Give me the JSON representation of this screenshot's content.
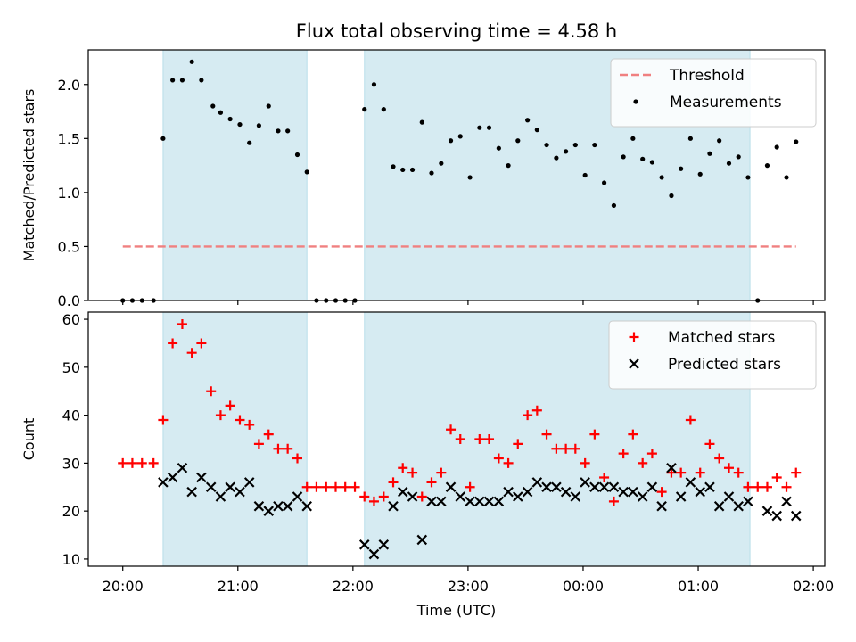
{
  "title": "Flux total observing time = 4.58 h",
  "chart_data": [
    {
      "type": "scatter",
      "ylabel": "Matched/Predicted stars",
      "ylim": [
        0,
        2.32
      ],
      "xlim": [
        -0.3,
        6.1
      ],
      "yticks": [
        0.0,
        0.5,
        1.0,
        1.5,
        2.0
      ],
      "ytick_labels": [
        "0.0",
        "0.5",
        "1.0",
        "1.5",
        "2.0"
      ],
      "shaded_spans": [
        [
          0.35,
          1.6
        ],
        [
          2.1,
          5.45
        ]
      ],
      "threshold": {
        "name": "Threshold",
        "y": 0.5,
        "x_range": [
          0.0,
          5.85
        ],
        "color": "#f08080"
      },
      "legend": {
        "position": "top-right",
        "entries": [
          "Threshold",
          "Measurements"
        ]
      },
      "series": [
        {
          "name": "Measurements",
          "marker": "dot",
          "color": "#000000",
          "points": [
            [
              0.0,
              0.0
            ],
            [
              0.083,
              0.0
            ],
            [
              0.167,
              0.0
            ],
            [
              0.267,
              0.0
            ],
            [
              0.35,
              1.5
            ],
            [
              0.433,
              2.04
            ],
            [
              0.517,
              2.04
            ],
            [
              0.6,
              2.21
            ],
            [
              0.683,
              2.04
            ],
            [
              0.783,
              1.8
            ],
            [
              0.85,
              1.74
            ],
            [
              0.933,
              1.68
            ],
            [
              1.017,
              1.63
            ],
            [
              1.1,
              1.46
            ],
            [
              1.183,
              1.62
            ],
            [
              1.267,
              1.8
            ],
            [
              1.35,
              1.57
            ],
            [
              1.433,
              1.57
            ],
            [
              1.517,
              1.35
            ],
            [
              1.6,
              1.19
            ],
            [
              1.683,
              0.0
            ],
            [
              1.767,
              0.0
            ],
            [
              1.85,
              0.0
            ],
            [
              1.933,
              0.0
            ],
            [
              2.017,
              0.0
            ],
            [
              2.1,
              1.77
            ],
            [
              2.183,
              2.0
            ],
            [
              2.267,
              1.77
            ],
            [
              2.35,
              1.24
            ],
            [
              2.433,
              1.21
            ],
            [
              2.517,
              1.21
            ],
            [
              2.6,
              1.65
            ],
            [
              2.683,
              1.18
            ],
            [
              2.767,
              1.27
            ],
            [
              2.85,
              1.48
            ],
            [
              2.933,
              1.52
            ],
            [
              3.017,
              1.14
            ],
            [
              3.1,
              1.6
            ],
            [
              3.183,
              1.6
            ],
            [
              3.267,
              1.41
            ],
            [
              3.35,
              1.25
            ],
            [
              3.433,
              1.48
            ],
            [
              3.517,
              1.67
            ],
            [
              3.6,
              1.58
            ],
            [
              3.683,
              1.44
            ],
            [
              3.767,
              1.32
            ],
            [
              3.85,
              1.38
            ],
            [
              3.933,
              1.44
            ],
            [
              4.017,
              1.16
            ],
            [
              4.1,
              1.44
            ],
            [
              4.183,
              1.09
            ],
            [
              4.267,
              0.88
            ],
            [
              4.35,
              1.33
            ],
            [
              4.433,
              1.5
            ],
            [
              4.517,
              1.31
            ],
            [
              4.6,
              1.28
            ],
            [
              4.683,
              1.14
            ],
            [
              4.767,
              0.97
            ],
            [
              4.85,
              1.22
            ],
            [
              4.933,
              1.5
            ],
            [
              5.017,
              1.17
            ],
            [
              5.1,
              1.36
            ],
            [
              5.183,
              1.48
            ],
            [
              5.267,
              1.27
            ],
            [
              5.35,
              1.33
            ],
            [
              5.433,
              1.14
            ],
            [
              5.517,
              0.0
            ],
            [
              5.6,
              1.25
            ],
            [
              5.683,
              1.42
            ],
            [
              5.767,
              1.14
            ],
            [
              5.85,
              1.47
            ]
          ]
        }
      ]
    },
    {
      "type": "scatter",
      "xlabel": "Time (UTC)",
      "ylabel": "Count",
      "ylim": [
        8.5,
        61.5
      ],
      "xlim": [
        -0.3,
        6.1
      ],
      "yticks": [
        10,
        20,
        30,
        40,
        50,
        60
      ],
      "ytick_labels": [
        "10",
        "20",
        "30",
        "40",
        "50",
        "60"
      ],
      "xticks": [
        0,
        1,
        2,
        3,
        4,
        5,
        6
      ],
      "xtick_labels": [
        "20:00",
        "21:00",
        "22:00",
        "23:00",
        "00:00",
        "01:00",
        "02:00"
      ],
      "shaded_spans": [
        [
          0.35,
          1.6
        ],
        [
          2.1,
          5.45
        ]
      ],
      "legend": {
        "position": "top-right",
        "entries": [
          "Matched stars",
          "Predicted stars"
        ]
      },
      "series": [
        {
          "name": "Matched stars",
          "marker": "plus",
          "color": "#ff0000",
          "points": [
            [
              0.0,
              30
            ],
            [
              0.083,
              30
            ],
            [
              0.167,
              30
            ],
            [
              0.267,
              30
            ],
            [
              0.35,
              39
            ],
            [
              0.433,
              55
            ],
            [
              0.517,
              59
            ],
            [
              0.6,
              53
            ],
            [
              0.683,
              55
            ],
            [
              0.767,
              45
            ],
            [
              0.85,
              40
            ],
            [
              0.933,
              42
            ],
            [
              1.017,
              39
            ],
            [
              1.1,
              38
            ],
            [
              1.183,
              34
            ],
            [
              1.267,
              36
            ],
            [
              1.35,
              33
            ],
            [
              1.433,
              33
            ],
            [
              1.517,
              31
            ],
            [
              1.6,
              25
            ],
            [
              1.683,
              25
            ],
            [
              1.767,
              25
            ],
            [
              1.85,
              25
            ],
            [
              1.933,
              25
            ],
            [
              2.017,
              25
            ],
            [
              2.1,
              23
            ],
            [
              2.183,
              22
            ],
            [
              2.267,
              23
            ],
            [
              2.35,
              26
            ],
            [
              2.433,
              29
            ],
            [
              2.517,
              28
            ],
            [
              2.6,
              23
            ],
            [
              2.683,
              26
            ],
            [
              2.767,
              28
            ],
            [
              2.85,
              37
            ],
            [
              2.933,
              35
            ],
            [
              3.017,
              25
            ],
            [
              3.1,
              35
            ],
            [
              3.183,
              35
            ],
            [
              3.267,
              31
            ],
            [
              3.35,
              30
            ],
            [
              3.433,
              34
            ],
            [
              3.517,
              40
            ],
            [
              3.6,
              41
            ],
            [
              3.683,
              36
            ],
            [
              3.767,
              33
            ],
            [
              3.85,
              33
            ],
            [
              3.933,
              33
            ],
            [
              4.017,
              30
            ],
            [
              4.1,
              36
            ],
            [
              4.183,
              27
            ],
            [
              4.267,
              22
            ],
            [
              4.35,
              32
            ],
            [
              4.433,
              36
            ],
            [
              4.517,
              30
            ],
            [
              4.6,
              32
            ],
            [
              4.683,
              24
            ],
            [
              4.767,
              28
            ],
            [
              4.85,
              28
            ],
            [
              4.933,
              39
            ],
            [
              5.017,
              28
            ],
            [
              5.1,
              34
            ],
            [
              5.183,
              31
            ],
            [
              5.267,
              29
            ],
            [
              5.35,
              28
            ],
            [
              5.433,
              25
            ],
            [
              5.517,
              25
            ],
            [
              5.6,
              25
            ],
            [
              5.683,
              27
            ],
            [
              5.767,
              25
            ],
            [
              5.85,
              28
            ]
          ]
        },
        {
          "name": "Predicted stars",
          "marker": "x",
          "color": "#000000",
          "points": [
            [
              0.35,
              26
            ],
            [
              0.433,
              27
            ],
            [
              0.517,
              29
            ],
            [
              0.6,
              24
            ],
            [
              0.683,
              27
            ],
            [
              0.767,
              25
            ],
            [
              0.85,
              23
            ],
            [
              0.933,
              25
            ],
            [
              1.017,
              24
            ],
            [
              1.1,
              26
            ],
            [
              1.183,
              21
            ],
            [
              1.267,
              20
            ],
            [
              1.35,
              21
            ],
            [
              1.433,
              21
            ],
            [
              1.517,
              23
            ],
            [
              1.6,
              21
            ],
            [
              2.1,
              13
            ],
            [
              2.183,
              11
            ],
            [
              2.267,
              13
            ],
            [
              2.35,
              21
            ],
            [
              2.433,
              24
            ],
            [
              2.517,
              23
            ],
            [
              2.6,
              14
            ],
            [
              2.683,
              22
            ],
            [
              2.767,
              22
            ],
            [
              2.85,
              25
            ],
            [
              2.933,
              23
            ],
            [
              3.017,
              22
            ],
            [
              3.1,
              22
            ],
            [
              3.183,
              22
            ],
            [
              3.267,
              22
            ],
            [
              3.35,
              24
            ],
            [
              3.433,
              23
            ],
            [
              3.517,
              24
            ],
            [
              3.6,
              26
            ],
            [
              3.683,
              25
            ],
            [
              3.767,
              25
            ],
            [
              3.85,
              24
            ],
            [
              3.933,
              23
            ],
            [
              4.017,
              26
            ],
            [
              4.1,
              25
            ],
            [
              4.183,
              25
            ],
            [
              4.267,
              25
            ],
            [
              4.35,
              24
            ],
            [
              4.433,
              24
            ],
            [
              4.517,
              23
            ],
            [
              4.6,
              25
            ],
            [
              4.683,
              21
            ],
            [
              4.767,
              29
            ],
            [
              4.85,
              23
            ],
            [
              4.933,
              26
            ],
            [
              5.017,
              24
            ],
            [
              5.1,
              25
            ],
            [
              5.183,
              21
            ],
            [
              5.267,
              23
            ],
            [
              5.35,
              21
            ],
            [
              5.433,
              22
            ],
            [
              5.6,
              20
            ],
            [
              5.683,
              19
            ],
            [
              5.767,
              22
            ],
            [
              5.85,
              19
            ]
          ]
        }
      ]
    }
  ],
  "colors": {
    "span_fill": "#add8e6",
    "axes": "#000000"
  }
}
